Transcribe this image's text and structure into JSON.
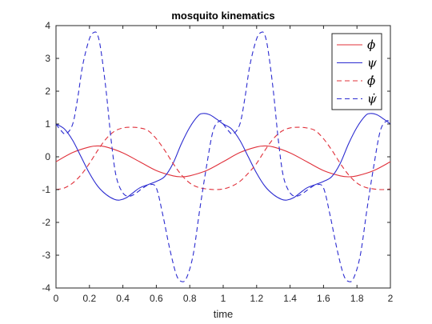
{
  "chart_data": {
    "type": "line",
    "title": "mosquito kinematics",
    "xlabel": "time",
    "ylabel": "",
    "xlim": [
      0,
      2
    ],
    "ylim": [
      -4,
      4
    ],
    "xticks": [
      0,
      0.2,
      0.4,
      0.6,
      0.8,
      1,
      1.2,
      1.4,
      1.6,
      1.8,
      2
    ],
    "yticks": [
      -4,
      -3,
      -2,
      -1,
      0,
      1,
      2,
      3,
      4
    ],
    "grid": false,
    "legend": "top-right",
    "series": [
      {
        "name": "ϕ",
        "color": "#e0303a",
        "style": "solid",
        "x": [
          0,
          0.1,
          0.2,
          0.25,
          0.3,
          0.4,
          0.5,
          0.6,
          0.7,
          0.75,
          0.8,
          0.9,
          1.0,
          1.1,
          1.2,
          1.25,
          1.3,
          1.4,
          1.5,
          1.6,
          1.7,
          1.75,
          1.8,
          1.9,
          2.0
        ],
        "y": [
          -0.15,
          0.13,
          0.3,
          0.33,
          0.3,
          0.12,
          -0.15,
          -0.42,
          -0.58,
          -0.61,
          -0.58,
          -0.42,
          -0.15,
          0.13,
          0.3,
          0.33,
          0.3,
          0.12,
          -0.15,
          -0.42,
          -0.58,
          -0.61,
          -0.58,
          -0.42,
          -0.15
        ]
      },
      {
        "name": "ψ",
        "color": "#2b2bd0",
        "style": "solid",
        "x": [
          0,
          0.05,
          0.1,
          0.15,
          0.2,
          0.25,
          0.3,
          0.35,
          0.38,
          0.42,
          0.46,
          0.5,
          0.55,
          0.6,
          0.65,
          0.7,
          0.75,
          0.8,
          0.85,
          0.88,
          0.92,
          0.96,
          1.0,
          1.05,
          1.1,
          1.15,
          1.2,
          1.25,
          1.3,
          1.35,
          1.38,
          1.42,
          1.46,
          1.5,
          1.55,
          1.6,
          1.65,
          1.7,
          1.75,
          1.8,
          1.85,
          1.88,
          1.92,
          1.96,
          2.0
        ],
        "y": [
          1.0,
          0.85,
          0.5,
          0.0,
          -0.5,
          -0.9,
          -1.15,
          -1.3,
          -1.32,
          -1.25,
          -1.1,
          -0.95,
          -0.85,
          -0.75,
          -0.6,
          -0.2,
          0.4,
          0.9,
          1.25,
          1.32,
          1.28,
          1.15,
          1.0,
          0.85,
          0.5,
          0.0,
          -0.5,
          -0.9,
          -1.15,
          -1.3,
          -1.32,
          -1.25,
          -1.1,
          -0.95,
          -0.85,
          -0.75,
          -0.6,
          -0.2,
          0.4,
          0.9,
          1.25,
          1.32,
          1.28,
          1.15,
          1.0
        ]
      },
      {
        "name": "ϕ̇",
        "color": "#e0303a",
        "style": "dashed",
        "x": [
          0,
          0.05,
          0.1,
          0.15,
          0.2,
          0.25,
          0.3,
          0.35,
          0.4,
          0.45,
          0.5,
          0.55,
          0.6,
          0.65,
          0.7,
          0.75,
          0.8,
          0.85,
          0.9,
          0.95,
          1.0,
          1.05,
          1.1,
          1.15,
          1.2,
          1.25,
          1.3,
          1.35,
          1.4,
          1.45,
          1.5,
          1.55,
          1.6,
          1.65,
          1.7,
          1.75,
          1.8,
          1.85,
          1.9,
          1.95,
          2.0
        ],
        "y": [
          -1.0,
          -0.95,
          -0.8,
          -0.55,
          -0.2,
          0.2,
          0.55,
          0.78,
          0.88,
          0.9,
          0.88,
          0.8,
          0.55,
          0.2,
          -0.2,
          -0.55,
          -0.8,
          -0.93,
          -0.98,
          -1.0,
          -0.98,
          -0.9,
          -0.75,
          -0.5,
          -0.2,
          0.2,
          0.55,
          0.78,
          0.88,
          0.9,
          0.88,
          0.8,
          0.55,
          0.2,
          -0.2,
          -0.55,
          -0.8,
          -0.93,
          -0.98,
          -1.0,
          -0.98
        ]
      },
      {
        "name": "ψ̇",
        "color": "#2b2bd0",
        "style": "dashed",
        "x": [
          0,
          0.03,
          0.06,
          0.1,
          0.13,
          0.16,
          0.2,
          0.23,
          0.25,
          0.27,
          0.3,
          0.33,
          0.36,
          0.4,
          0.44,
          0.48,
          0.52,
          0.56,
          0.6,
          0.64,
          0.68,
          0.72,
          0.75,
          0.78,
          0.82,
          0.86,
          0.9,
          0.94,
          0.98,
          1.0,
          1.03,
          1.06,
          1.1,
          1.13,
          1.16,
          1.2,
          1.23,
          1.25,
          1.27,
          1.3,
          1.33,
          1.36,
          1.4,
          1.44,
          1.48,
          1.52,
          1.56,
          1.6,
          1.64,
          1.68,
          1.72,
          1.75,
          1.78,
          1.82,
          1.86,
          1.9,
          1.94,
          1.98,
          2.0
        ],
        "y": [
          1.0,
          0.8,
          0.7,
          1.0,
          1.8,
          2.8,
          3.6,
          3.8,
          3.7,
          3.2,
          2.0,
          0.5,
          -0.6,
          -1.1,
          -1.2,
          -1.1,
          -0.95,
          -0.85,
          -0.95,
          -1.8,
          -2.8,
          -3.6,
          -3.8,
          -3.7,
          -3.0,
          -1.6,
          -0.3,
          0.8,
          1.1,
          1.0,
          0.8,
          0.7,
          1.0,
          1.8,
          2.8,
          3.6,
          3.8,
          3.7,
          3.2,
          2.0,
          0.5,
          -0.6,
          -1.1,
          -1.2,
          -1.1,
          -0.95,
          -0.85,
          -0.95,
          -1.8,
          -2.8,
          -3.6,
          -3.8,
          -3.7,
          -3.0,
          -1.6,
          -0.3,
          0.8,
          1.1,
          1.0
        ]
      }
    ]
  }
}
